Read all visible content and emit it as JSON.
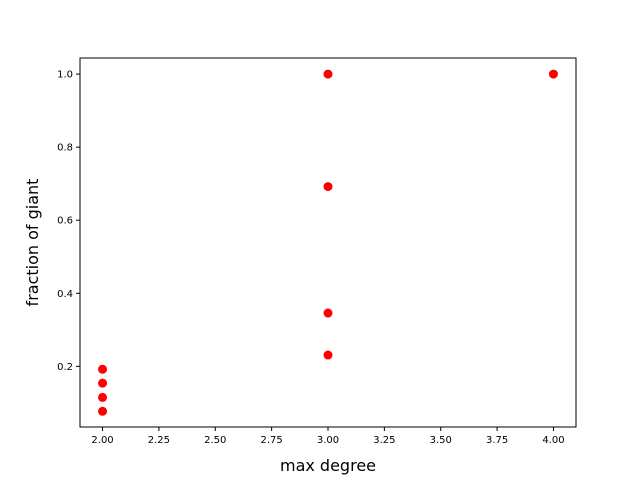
{
  "chart_data": {
    "type": "scatter",
    "xlabel": "max degree",
    "ylabel": "fraction of giant",
    "xlim": [
      1.9,
      4.1
    ],
    "ylim": [
      0.034,
      1.044
    ],
    "x_ticks": [
      "2.00",
      "2.25",
      "2.50",
      "2.75",
      "3.00",
      "3.25",
      "3.50",
      "3.75",
      "4.00"
    ],
    "x_tick_values": [
      2.0,
      2.25,
      2.5,
      2.75,
      3.0,
      3.25,
      3.5,
      3.75,
      4.0
    ],
    "y_ticks": [
      "0.2",
      "0.4",
      "0.6",
      "0.8",
      "1.0"
    ],
    "y_tick_values": [
      0.2,
      0.4,
      0.6,
      0.8,
      1.0
    ],
    "grid": false,
    "marker_color": "#ff0000",
    "points": [
      {
        "x": 2.0,
        "y": 0.077
      },
      {
        "x": 2.0,
        "y": 0.115
      },
      {
        "x": 2.0,
        "y": 0.154
      },
      {
        "x": 2.0,
        "y": 0.192
      },
      {
        "x": 3.0,
        "y": 0.231
      },
      {
        "x": 3.0,
        "y": 0.346
      },
      {
        "x": 3.0,
        "y": 0.692
      },
      {
        "x": 3.0,
        "y": 1.0
      },
      {
        "x": 4.0,
        "y": 1.0
      }
    ]
  }
}
